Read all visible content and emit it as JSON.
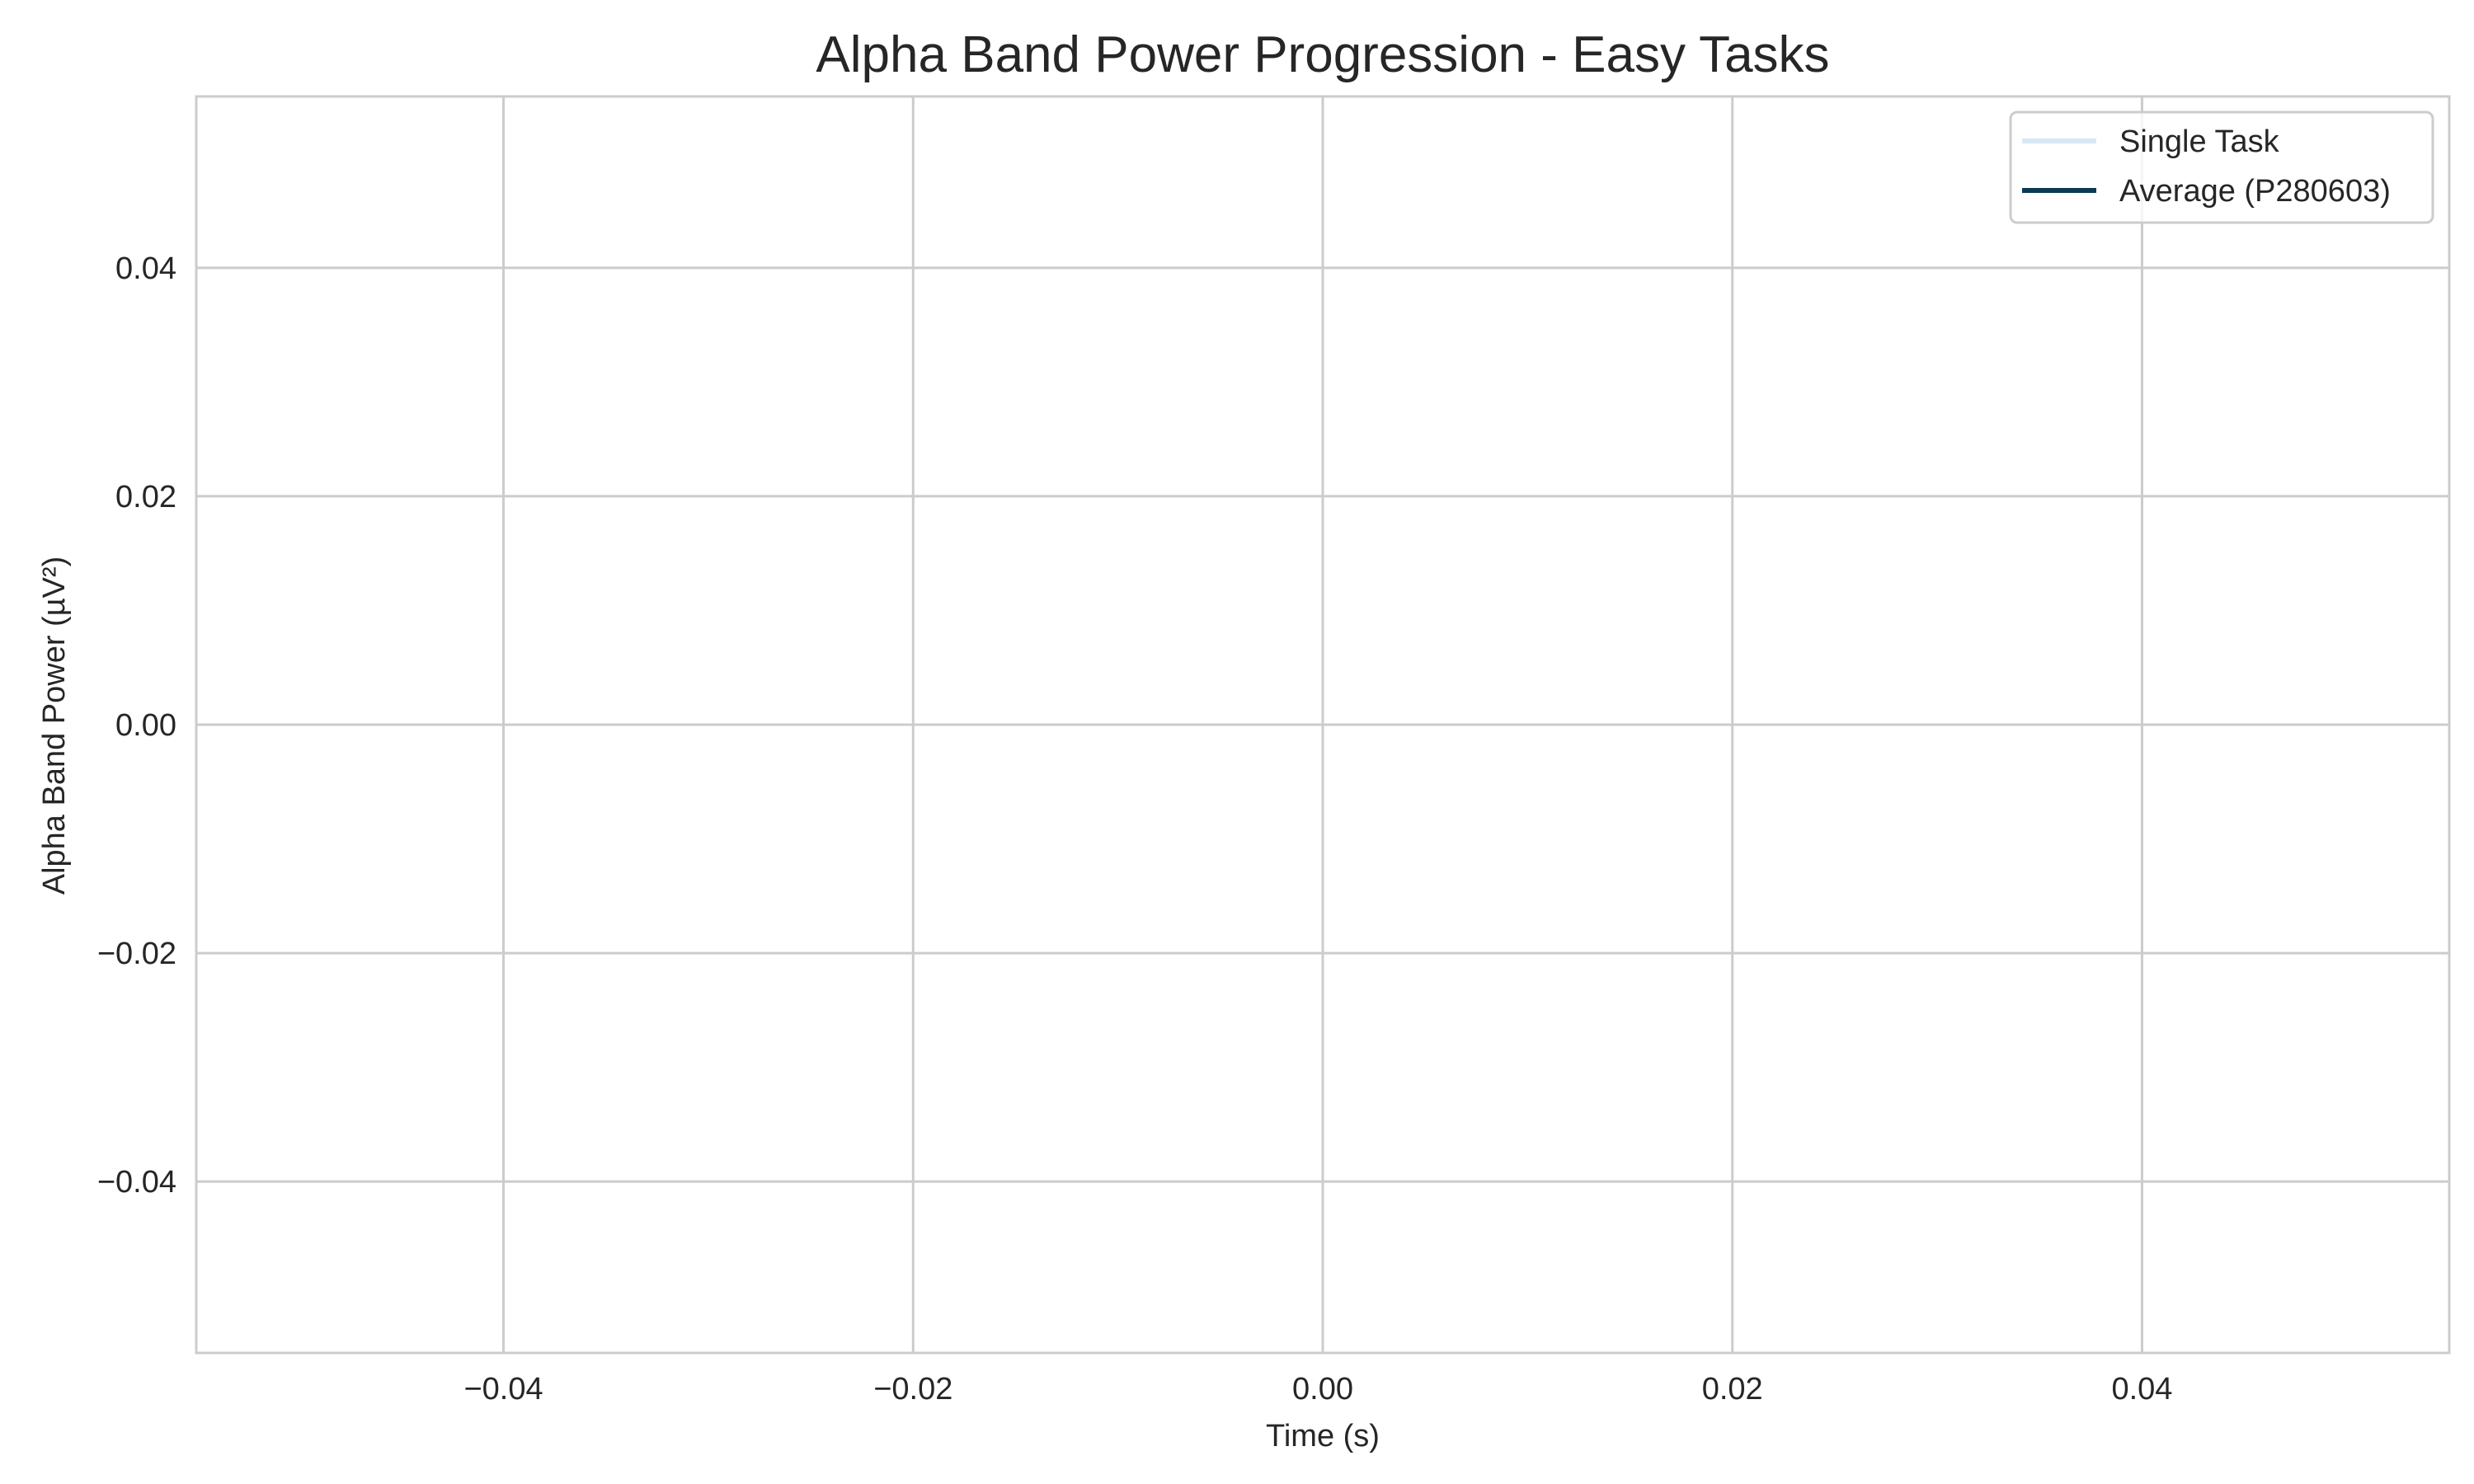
{
  "chart_data": {
    "type": "line",
    "title": "Alpha Band Power Progression - Easy Tasks",
    "xlabel": "Time (s)",
    "ylabel": "Alpha Band Power (µV²)",
    "xlim": [
      -0.055,
      0.055
    ],
    "ylim": [
      -0.055,
      0.055
    ],
    "x_ticks": [
      -0.04,
      -0.02,
      0.0,
      0.02,
      0.04
    ],
    "x_tick_labels": [
      "−0.04",
      "−0.02",
      "0.00",
      "0.02",
      "0.04"
    ],
    "y_ticks": [
      0.04,
      0.02,
      0.0,
      -0.02,
      -0.04
    ],
    "y_tick_labels": [
      "0.04",
      "0.02",
      "0.00",
      "−0.02",
      "−0.04"
    ],
    "grid": true,
    "legend_position": "top-right",
    "series": [
      {
        "name": "Single Task",
        "color": "#d6e9f5",
        "x": [],
        "y": []
      },
      {
        "name": "Average (P280603)",
        "color": "#0b3a55",
        "x": [],
        "y": []
      }
    ]
  }
}
